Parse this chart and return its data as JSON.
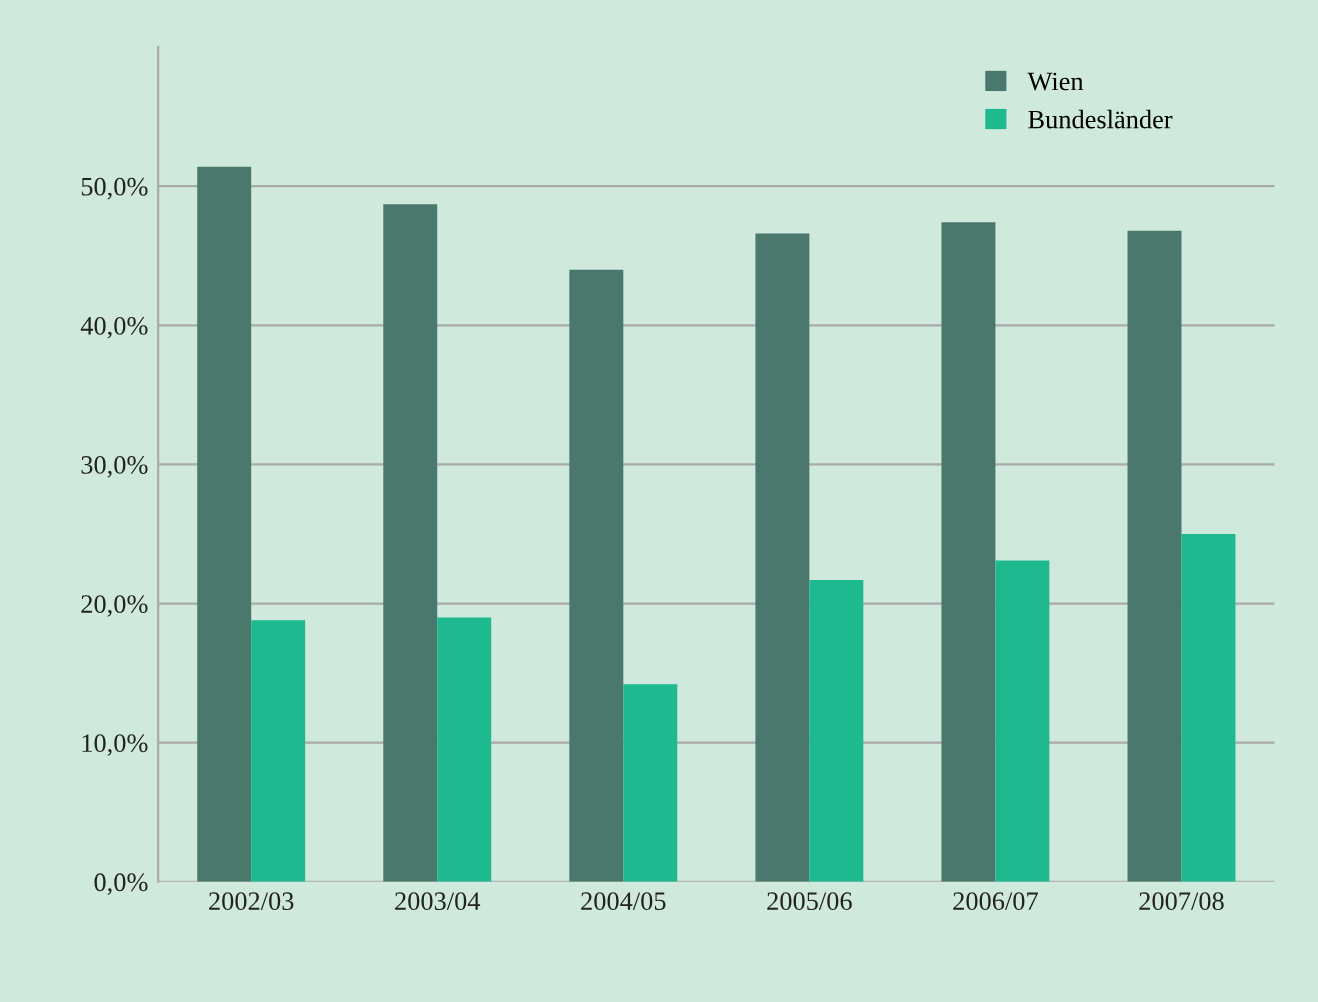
{
  "chart_data": {
    "type": "bar",
    "categories": [
      "2002/03",
      "2003/04",
      "2004/05",
      "2005/06",
      "2006/07",
      "2007/08"
    ],
    "series": [
      {
        "name": "Wien",
        "color": "#4a786c",
        "values": [
          51.4,
          48.7,
          44.0,
          46.6,
          47.4,
          46.8
        ]
      },
      {
        "name": "Bundesländer",
        "color": "#1eb98e",
        "values": [
          18.8,
          19.0,
          14.2,
          21.7,
          23.1,
          25.0
        ]
      }
    ],
    "ylim": [
      0,
      60
    ],
    "yticks": [
      {
        "value": 0,
        "label": "0,0%"
      },
      {
        "value": 10,
        "label": "10,0%"
      },
      {
        "value": 20,
        "label": "20,0%"
      },
      {
        "value": 30,
        "label": "30,0%"
      },
      {
        "value": 40,
        "label": "40,0%"
      },
      {
        "value": 50,
        "label": "50,0%"
      }
    ],
    "grid": "y",
    "legend": "top right"
  }
}
